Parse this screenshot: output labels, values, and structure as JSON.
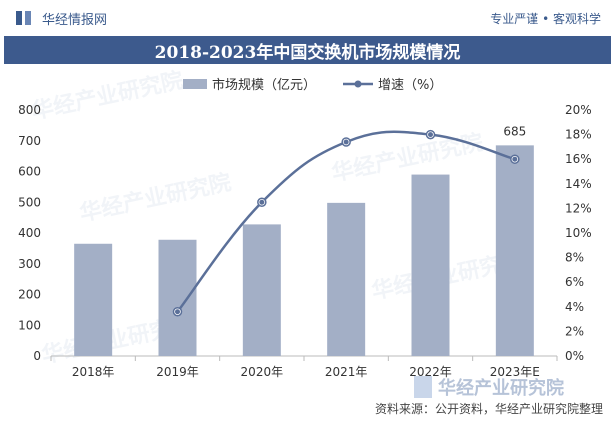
{
  "header": {
    "brand": "华经情报网",
    "tagline": "专业严谨 • 客观科学",
    "title": "2018-2023年中国交换机市场规模情况"
  },
  "watermark": {
    "text": "华经产业研究院",
    "logo_text": "华经产业研究院"
  },
  "footer": {
    "source": "资料来源：公开资料，华经产业研究院整理"
  },
  "colors": {
    "bar": "#a3afc6",
    "line": "#5b7099",
    "title_bg": "#3d5a8d"
  },
  "chart_data": {
    "type": "bar",
    "title": "2018-2023年中国交换机市场规模情况",
    "categories": [
      "2018年",
      "2019年",
      "2020年",
      "2021年",
      "2022年",
      "2023年E"
    ],
    "series": [
      {
        "name": "市场规模（亿元）",
        "type": "bar",
        "axis": "left",
        "values": [
          365,
          378,
          428,
          498,
          590,
          685
        ]
      },
      {
        "name": "增速（%）",
        "type": "line",
        "axis": "right",
        "values": [
          null,
          3.6,
          12.5,
          17.4,
          18.0,
          16.0
        ]
      }
    ],
    "data_labels": [
      {
        "series": 0,
        "index": 5,
        "text": "685"
      }
    ],
    "ylim_left": [
      0,
      800
    ],
    "yticks_left": [
      "0",
      "100",
      "200",
      "300",
      "400",
      "500",
      "600",
      "700",
      "800"
    ],
    "ylim_right": [
      0,
      20
    ],
    "yticks_right": [
      "0%",
      "2%",
      "4%",
      "6%",
      "8%",
      "10%",
      "12%",
      "14%",
      "16%",
      "18%",
      "20%"
    ],
    "legend_position": "top-center",
    "grid": false
  }
}
